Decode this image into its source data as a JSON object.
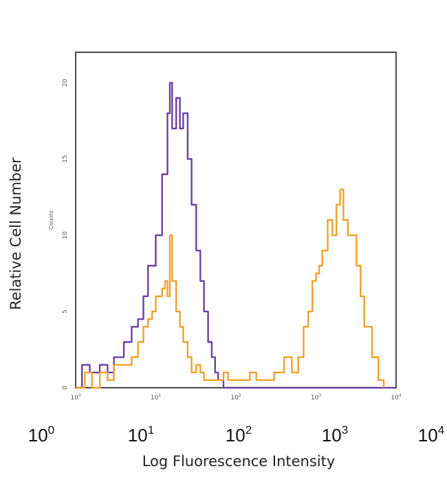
{
  "chart_data": {
    "type": "line",
    "x_scale": "log",
    "xlim": [
      1,
      10000
    ],
    "ylim": [
      0,
      22
    ],
    "grid": false,
    "xlabel": "Log Fluorescence Intensity",
    "ylabel": "Relative Cell Number",
    "inner_ylabel": "Counts",
    "x_ticks": [
      {
        "base": "10",
        "exp": "0",
        "value": 1
      },
      {
        "base": "10",
        "exp": "1",
        "value": 10
      },
      {
        "base": "10",
        "exp": "2",
        "value": 100
      },
      {
        "base": "10",
        "exp": "3",
        "value": 1000
      },
      {
        "base": "10",
        "exp": "4",
        "value": 10000
      }
    ],
    "y_ticks": [
      "0",
      "5",
      "10",
      "15",
      "20"
    ],
    "series": [
      {
        "color": "#6a3fa0",
        "points": [
          [
            1,
            0
          ],
          [
            1.2,
            1.5
          ],
          [
            1.5,
            1
          ],
          [
            2,
            1.5
          ],
          [
            2.5,
            1
          ],
          [
            3,
            2
          ],
          [
            4,
            3
          ],
          [
            5,
            4
          ],
          [
            6,
            4.5
          ],
          [
            7,
            6
          ],
          [
            8,
            8
          ],
          [
            10,
            10
          ],
          [
            12,
            14
          ],
          [
            14,
            18
          ],
          [
            15,
            20
          ],
          [
            16,
            17
          ],
          [
            18,
            19
          ],
          [
            20,
            17
          ],
          [
            22,
            18
          ],
          [
            25,
            15
          ],
          [
            28,
            12
          ],
          [
            32,
            9
          ],
          [
            36,
            7
          ],
          [
            40,
            5
          ],
          [
            45,
            3
          ],
          [
            50,
            2
          ],
          [
            55,
            1
          ],
          [
            60,
            0.5
          ],
          [
            70,
            0
          ],
          [
            100,
            0
          ],
          [
            1000,
            0
          ],
          [
            10000,
            0
          ]
        ]
      },
      {
        "color": "#f0a028",
        "points": [
          [
            1,
            0
          ],
          [
            1.3,
            1
          ],
          [
            1.6,
            0
          ],
          [
            2,
            1
          ],
          [
            2.5,
            0.5
          ],
          [
            3,
            1.5
          ],
          [
            4,
            1.5
          ],
          [
            5,
            2
          ],
          [
            6,
            3
          ],
          [
            7,
            4
          ],
          [
            8,
            4.5
          ],
          [
            9,
            5
          ],
          [
            10,
            6
          ],
          [
            12,
            6.5
          ],
          [
            13,
            7
          ],
          [
            14,
            6
          ],
          [
            15,
            10
          ],
          [
            16,
            7
          ],
          [
            18,
            5
          ],
          [
            20,
            4
          ],
          [
            22,
            3
          ],
          [
            25,
            2
          ],
          [
            28,
            1
          ],
          [
            32,
            1.5
          ],
          [
            36,
            1
          ],
          [
            40,
            0.5
          ],
          [
            50,
            0.5
          ],
          [
            70,
            1
          ],
          [
            80,
            0.5
          ],
          [
            100,
            0.5
          ],
          [
            120,
            0.5
          ],
          [
            150,
            1
          ],
          [
            180,
            0.5
          ],
          [
            250,
            0.5
          ],
          [
            300,
            1
          ],
          [
            400,
            2
          ],
          [
            500,
            1
          ],
          [
            600,
            2
          ],
          [
            700,
            4
          ],
          [
            800,
            5
          ],
          [
            900,
            7
          ],
          [
            1000,
            7.5
          ],
          [
            1100,
            8
          ],
          [
            1200,
            9
          ],
          [
            1400,
            11
          ],
          [
            1600,
            10
          ],
          [
            1800,
            12
          ],
          [
            2000,
            13
          ],
          [
            2200,
            11
          ],
          [
            2500,
            10
          ],
          [
            2800,
            10
          ],
          [
            3200,
            8
          ],
          [
            3600,
            6
          ],
          [
            4000,
            4
          ],
          [
            5000,
            2
          ],
          [
            6000,
            0.5
          ],
          [
            7000,
            0
          ]
        ]
      }
    ]
  }
}
